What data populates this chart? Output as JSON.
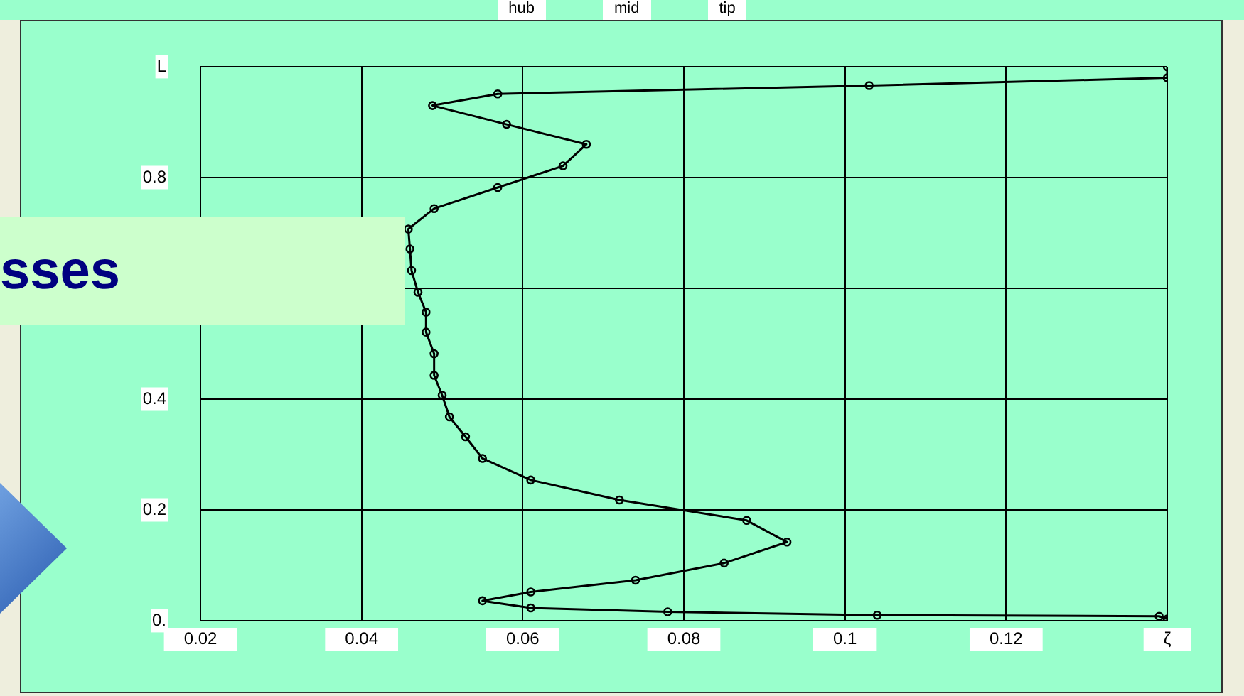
{
  "chart_data": {
    "type": "line",
    "marker": "circle",
    "grid": true,
    "xlim": [
      0.02,
      0.14
    ],
    "ylim": [
      0,
      1
    ],
    "xticks": [
      0.02,
      0.04,
      0.06,
      0.08,
      0.1,
      0.12,
      {
        "value": 0.14,
        "label": "ζ"
      }
    ],
    "yticks": [
      {
        "value": 0,
        "label": "0."
      },
      0.2,
      0.4,
      {
        "value": 0.6,
        "label": null
      },
      0.8,
      {
        "value": 1,
        "label": "L"
      }
    ],
    "annotations": [
      "hub",
      "mid",
      "tip",
      "sses"
    ],
    "series": [
      {
        "color": "#000000",
        "x": [
          0.14,
          0.14,
          0.103,
          0.0569,
          0.0488,
          0.058,
          0.0679,
          0.065,
          0.0569,
          0.049,
          0.0458,
          0.046,
          0.0462,
          0.047,
          0.048,
          0.048,
          0.049,
          0.049,
          0.05,
          0.0509,
          0.0529,
          0.055,
          0.061,
          0.072,
          0.0878,
          0.0928,
          0.085,
          0.074,
          0.061,
          0.055,
          0.061,
          0.078,
          0.104,
          0.139,
          0.14,
          0.14
        ],
        "values": [
          1.0,
          0.98,
          0.966,
          0.951,
          0.93,
          0.896,
          0.86,
          0.821,
          0.782,
          0.744,
          0.707,
          0.671,
          0.632,
          0.593,
          0.557,
          0.521,
          0.482,
          0.443,
          0.407,
          0.368,
          0.332,
          0.293,
          0.254,
          0.218,
          0.181,
          0.142,
          0.104,
          0.073,
          0.052,
          0.036,
          0.023,
          0.016,
          0.01,
          0.008,
          0.003,
          0
        ]
      }
    ]
  }
}
